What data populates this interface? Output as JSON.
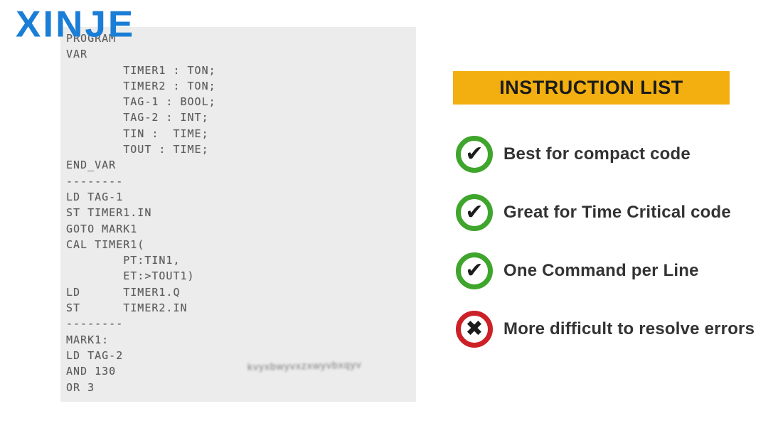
{
  "logo": {
    "text": "XINJE",
    "color": "#1a7ed6"
  },
  "code_panel": {
    "background_color": "#ececec",
    "text_color": "#5e5e5e",
    "lines": [
      "PROGRAM",
      "VAR",
      "        TIMER1 : TON;",
      "        TIMER2 : TON;",
      "        TAG-1 : BOOL;",
      "        TAG-2 : INT;",
      "        TIN :  TIME;",
      "        TOUT : TIME;",
      "END_VAR",
      "--------",
      "LD TAG-1",
      "ST TIMER1.IN",
      "GOTO MARK1",
      "CAL TIMER1(",
      "        PT:TIN1,",
      "        ET:>TOUT1)",
      "LD      TIMER1.Q",
      "ST      TIMER2.IN",
      "--------",
      "MARK1:",
      "LD TAG-2",
      "AND 130",
      "OR 3"
    ]
  },
  "instruction_panel": {
    "title": "INSTRUCTION LIST",
    "banner_color": "#f3af0f",
    "positive_color": "#3fa52c",
    "negative_color": "#cc2127",
    "items": [
      {
        "icon": "check-circle-icon",
        "status": "positive",
        "glyph": "✔",
        "label": "Best for compact code"
      },
      {
        "icon": "check-circle-icon",
        "status": "positive",
        "glyph": "✔",
        "label": "Great for Time Critical code"
      },
      {
        "icon": "check-circle-icon",
        "status": "positive",
        "glyph": "✔",
        "label": "One Command per Line"
      },
      {
        "icon": "cross-circle-icon",
        "status": "negative",
        "glyph": "✖",
        "label": "More difficult to resolve errors"
      }
    ]
  }
}
